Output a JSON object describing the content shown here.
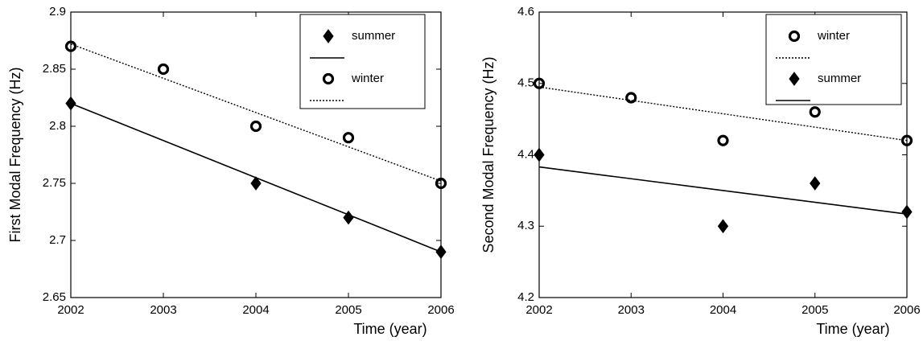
{
  "chart_data": [
    {
      "type": "scatter",
      "x_label": "Time (year)",
      "y_label": "First Modal Frequency (Hz)",
      "xlim": [
        2002,
        2006
      ],
      "xticks": [
        2002,
        2003,
        2004,
        2005,
        2006
      ],
      "ylim": [
        2.65,
        2.9
      ],
      "yticks": [
        2.65,
        2.7,
        2.75,
        2.8,
        2.85,
        2.9
      ],
      "legend": "upper right",
      "series": [
        {
          "name": "summer",
          "marker": "diamond",
          "line_style": "solid",
          "color": "#000000",
          "x": [
            2002,
            2004,
            2005,
            2006
          ],
          "values": [
            2.82,
            2.75,
            2.72,
            2.69
          ],
          "fit": [
            2.82,
            2.69
          ]
        },
        {
          "name": "winter",
          "marker": "circle",
          "line_style": "dotted",
          "color": "#000000",
          "x": [
            2002,
            2003,
            2004,
            2005,
            2006
          ],
          "values": [
            2.87,
            2.85,
            2.8,
            2.79,
            2.75
          ],
          "fit": [
            2.872,
            2.752
          ]
        }
      ]
    },
    {
      "type": "scatter",
      "x_label": "Time (year)",
      "y_label": "Second Modal Frequency (Hz)",
      "xlim": [
        2002,
        2006
      ],
      "xticks": [
        2002,
        2003,
        2004,
        2005,
        2006
      ],
      "ylim": [
        4.2,
        4.6
      ],
      "yticks": [
        4.2,
        4.3,
        4.4,
        4.5,
        4.6
      ],
      "legend": "upper right",
      "series": [
        {
          "name": "winter",
          "marker": "circle",
          "line_style": "dotted",
          "color": "#000000",
          "x": [
            2002,
            2003,
            2004,
            2005,
            2006
          ],
          "values": [
            4.5,
            4.48,
            4.42,
            4.46,
            4.42
          ],
          "fit": [
            4.495,
            4.42
          ]
        },
        {
          "name": "summer",
          "marker": "diamond",
          "line_style": "solid",
          "color": "#000000",
          "x": [
            2002,
            2004,
            2005,
            2006
          ],
          "values": [
            4.4,
            4.3,
            4.36,
            4.32
          ],
          "fit": [
            4.383,
            4.317
          ]
        }
      ]
    }
  ]
}
